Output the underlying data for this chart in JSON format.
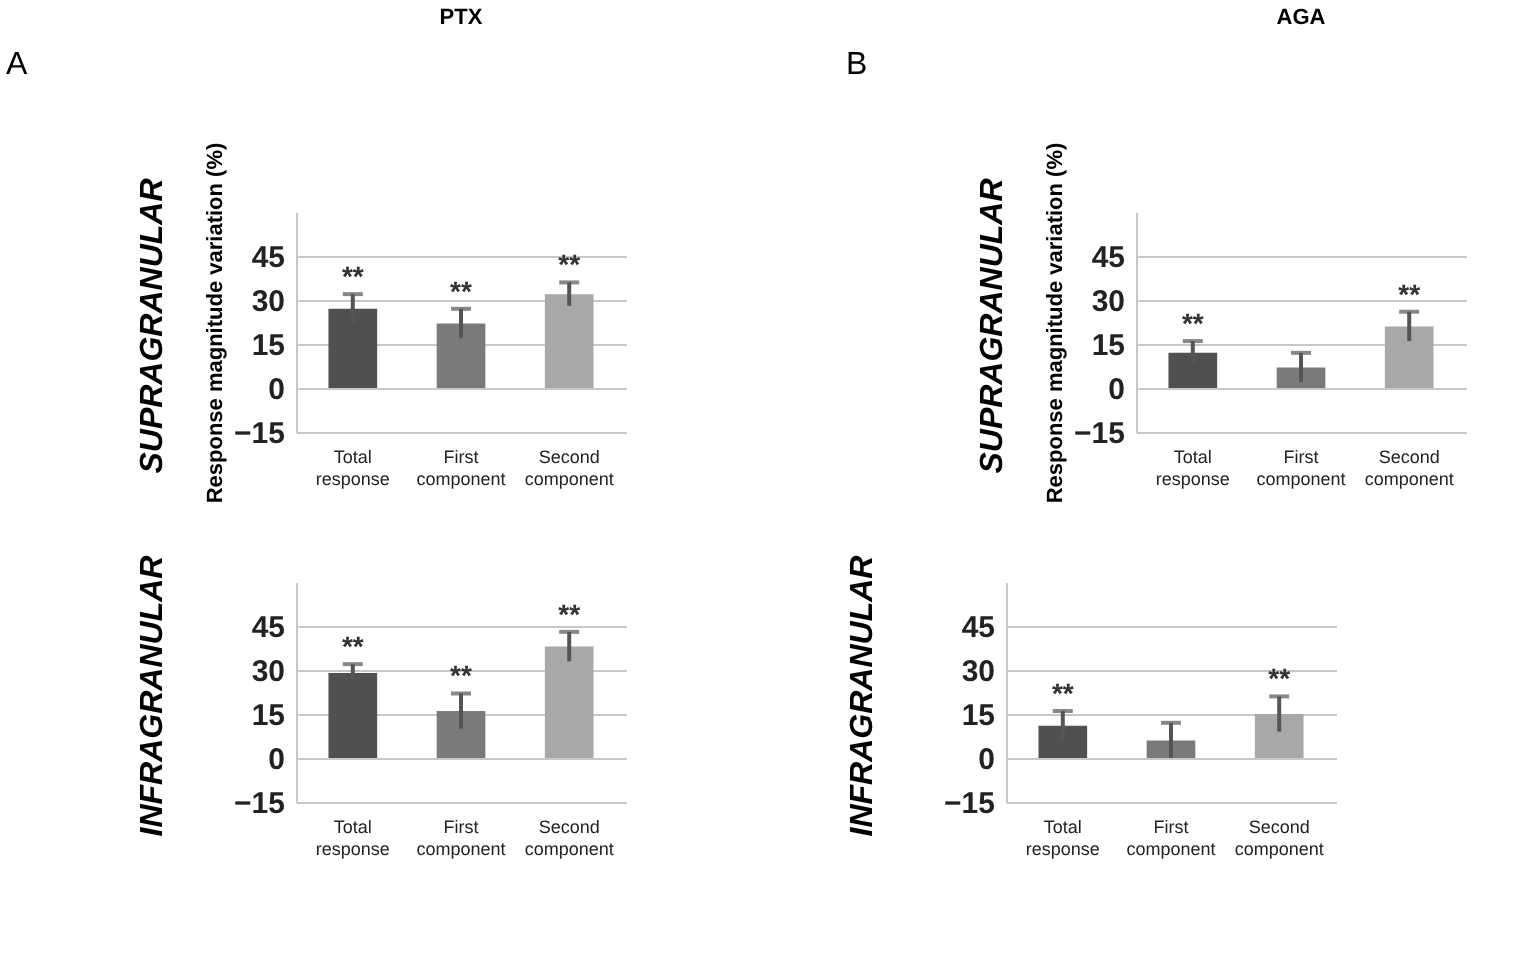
{
  "chart_data": [
    {
      "type": "bar",
      "title": "PTX",
      "ylabel": "Response magnitude variation (%)",
      "categories": [
        "Total response",
        "First component",
        "Second component"
      ],
      "values": [
        27,
        22,
        32
      ],
      "errors": [
        5,
        5,
        4
      ],
      "colors": [
        "#505050",
        "#7a7a7a",
        "#a8a8a8"
      ],
      "ylim": [
        -15,
        60
      ],
      "yticks": [
        -15,
        0,
        15,
        30,
        45
      ],
      "grid": "y",
      "annotations": [
        "A",
        "SUPRAGRANULAR",
        {
          "text": "**",
          "x": "Total response",
          "y": 32
        },
        {
          "text": "**",
          "x": "First component",
          "y": 27
        },
        {
          "text": "**",
          "x": "Second component",
          "y": 36
        }
      ]
    },
    {
      "type": "bar",
      "title": "AGA",
      "ylabel": "Response magnitude variation (%)",
      "categories": [
        "Total response",
        "First component",
        "Second component"
      ],
      "values": [
        12,
        7,
        21
      ],
      "errors": [
        4,
        5,
        5
      ],
      "colors": [
        "#505050",
        "#7a7a7a",
        "#a8a8a8"
      ],
      "ylim": [
        -15,
        60
      ],
      "yticks": [
        -15,
        0,
        15,
        30,
        45
      ],
      "grid": "y",
      "annotations": [
        "B",
        "SUPRAGRANULAR",
        {
          "text": "**",
          "x": "Total response",
          "y": 16
        },
        {
          "text": "**",
          "x": "Second component",
          "y": 26
        }
      ]
    },
    {
      "type": "bar",
      "categories": [
        "Total response",
        "First component",
        "Second component"
      ],
      "values": [
        29,
        16,
        38
      ],
      "errors": [
        3,
        6,
        5
      ],
      "colors": [
        "#505050",
        "#7a7a7a",
        "#a8a8a8"
      ],
      "ylim": [
        -15,
        60
      ],
      "yticks": [
        -15,
        0,
        15,
        30,
        45
      ],
      "grid": "y",
      "annotations": [
        "INFRAGRANULAR",
        {
          "text": "**",
          "x": "Total response",
          "y": 32
        },
        {
          "text": "**",
          "x": "First component",
          "y": 22
        },
        {
          "text": "**",
          "x": "Second component",
          "y": 43
        }
      ]
    },
    {
      "type": "bar",
      "categories": [
        "Total response",
        "First component",
        "Second component"
      ],
      "values": [
        11,
        6,
        15
      ],
      "errors": [
        5,
        6,
        6
      ],
      "colors": [
        "#505050",
        "#7a7a7a",
        "#a8a8a8"
      ],
      "ylim": [
        -15,
        60
      ],
      "yticks": [
        -15,
        0,
        15,
        30,
        45
      ],
      "grid": "y",
      "annotations": [
        "INFRAGRANULAR",
        {
          "text": "**",
          "x": "Total response",
          "y": 16
        },
        {
          "text": "**",
          "x": "Second component",
          "y": 21
        }
      ]
    }
  ]
}
